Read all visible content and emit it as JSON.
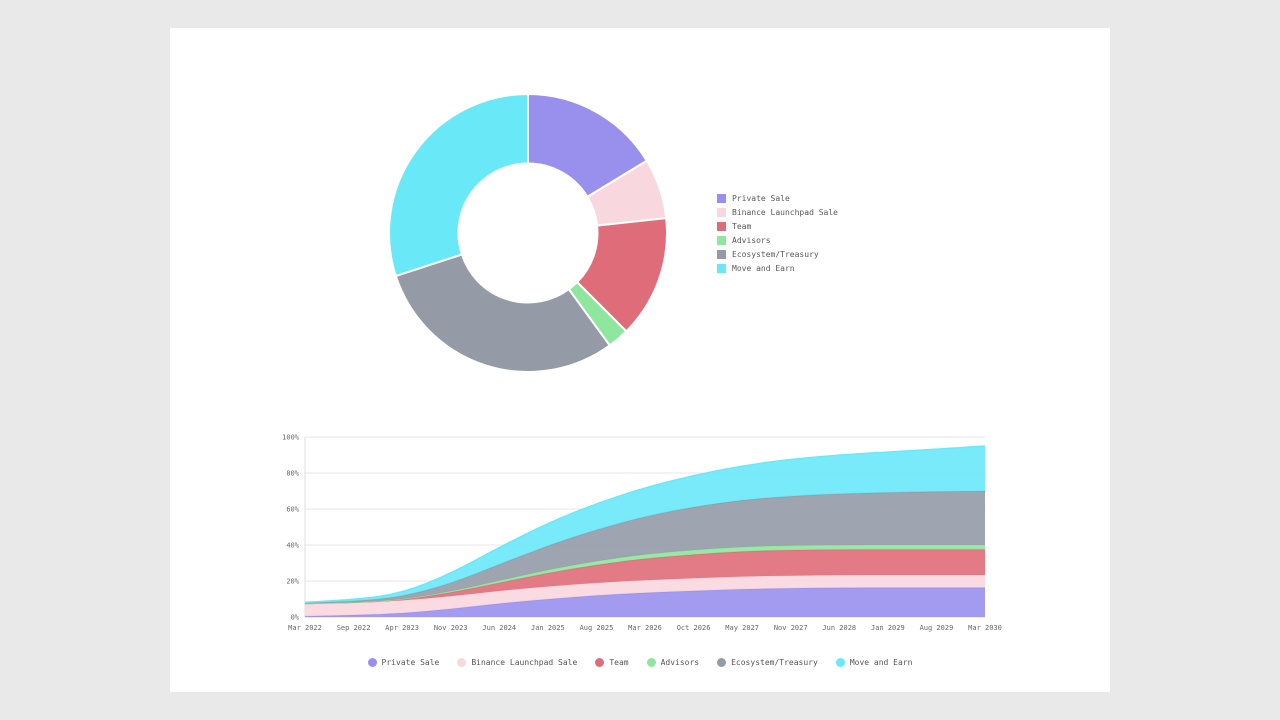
{
  "page": {
    "background_color": "#e9e9e9",
    "card_background_color": "#ffffff"
  },
  "chart_data": [
    {
      "type": "pie",
      "variant": "donut",
      "legend_position": "right",
      "labels": [
        "Private Sale",
        "Binance Launchpad Sale",
        "Team",
        "Advisors",
        "Ecosystem/Treasury",
        "Move and Earn"
      ],
      "values": [
        16.3,
        7,
        14.2,
        2.5,
        30,
        30
      ],
      "colors": [
        "#9990ee",
        "#f8d7de",
        "#df6d79",
        "#8fe69d",
        "#949ba7",
        "#69e8f8"
      ],
      "start_angle_deg": -90,
      "direction": "clockwise"
    },
    {
      "type": "area",
      "stacked": true,
      "grid": true,
      "legend_position": "bottom",
      "ylim": [
        0,
        100
      ],
      "yticks": [
        "0%",
        "20%",
        "40%",
        "60%",
        "80%",
        "100%"
      ],
      "x": [
        "Mar 2022",
        "Sep 2022",
        "Apr 2023",
        "Nov 2023",
        "Jun 2024",
        "Jan 2025",
        "Aug 2025",
        "Mar 2026",
        "Oct 2026",
        "May 2027",
        "Nov 2027",
        "Jun 2028",
        "Jan 2029",
        "Aug 2029",
        "Mar 2030"
      ],
      "series": [
        {
          "name": "Private Sale",
          "color": "#9990ee",
          "values": [
            0.5,
            1,
            2,
            4.5,
            7.5,
            10,
            12,
            13.5,
            14.5,
            15.5,
            16,
            16.3,
            16.3,
            16.3,
            16.3
          ]
        },
        {
          "name": "Binance Launchpad Sale",
          "color": "#f8d7de",
          "values": [
            7,
            7,
            7,
            7,
            7,
            7,
            7,
            7,
            7,
            7,
            7,
            7,
            7,
            7,
            7
          ]
        },
        {
          "name": "Team",
          "color": "#df6d79",
          "values": [
            0,
            0,
            0.5,
            2,
            4.5,
            7.5,
            10,
            12,
            13.2,
            14,
            14.2,
            14.2,
            14.2,
            14.2,
            14.2
          ]
        },
        {
          "name": "Advisors",
          "color": "#8fe69d",
          "values": [
            0,
            0,
            0.2,
            0.6,
            1.2,
            1.7,
            2.1,
            2.4,
            2.5,
            2.5,
            2.5,
            2.5,
            2.5,
            2.5,
            2.5
          ]
        },
        {
          "name": "Ecosystem/Treasury",
          "color": "#949ba7",
          "values": [
            0.3,
            0.7,
            1.5,
            4.5,
            9,
            13.5,
            17.5,
            21,
            24,
            26,
            27.5,
            28.5,
            29.2,
            29.7,
            30
          ]
        },
        {
          "name": "Move and Earn",
          "color": "#69e8f8",
          "values": [
            0.4,
            0.8,
            2,
            5.5,
            9.5,
            12.5,
            14.5,
            16,
            17.5,
            19,
            20.5,
            21.5,
            22.5,
            23.5,
            25
          ]
        }
      ]
    }
  ]
}
